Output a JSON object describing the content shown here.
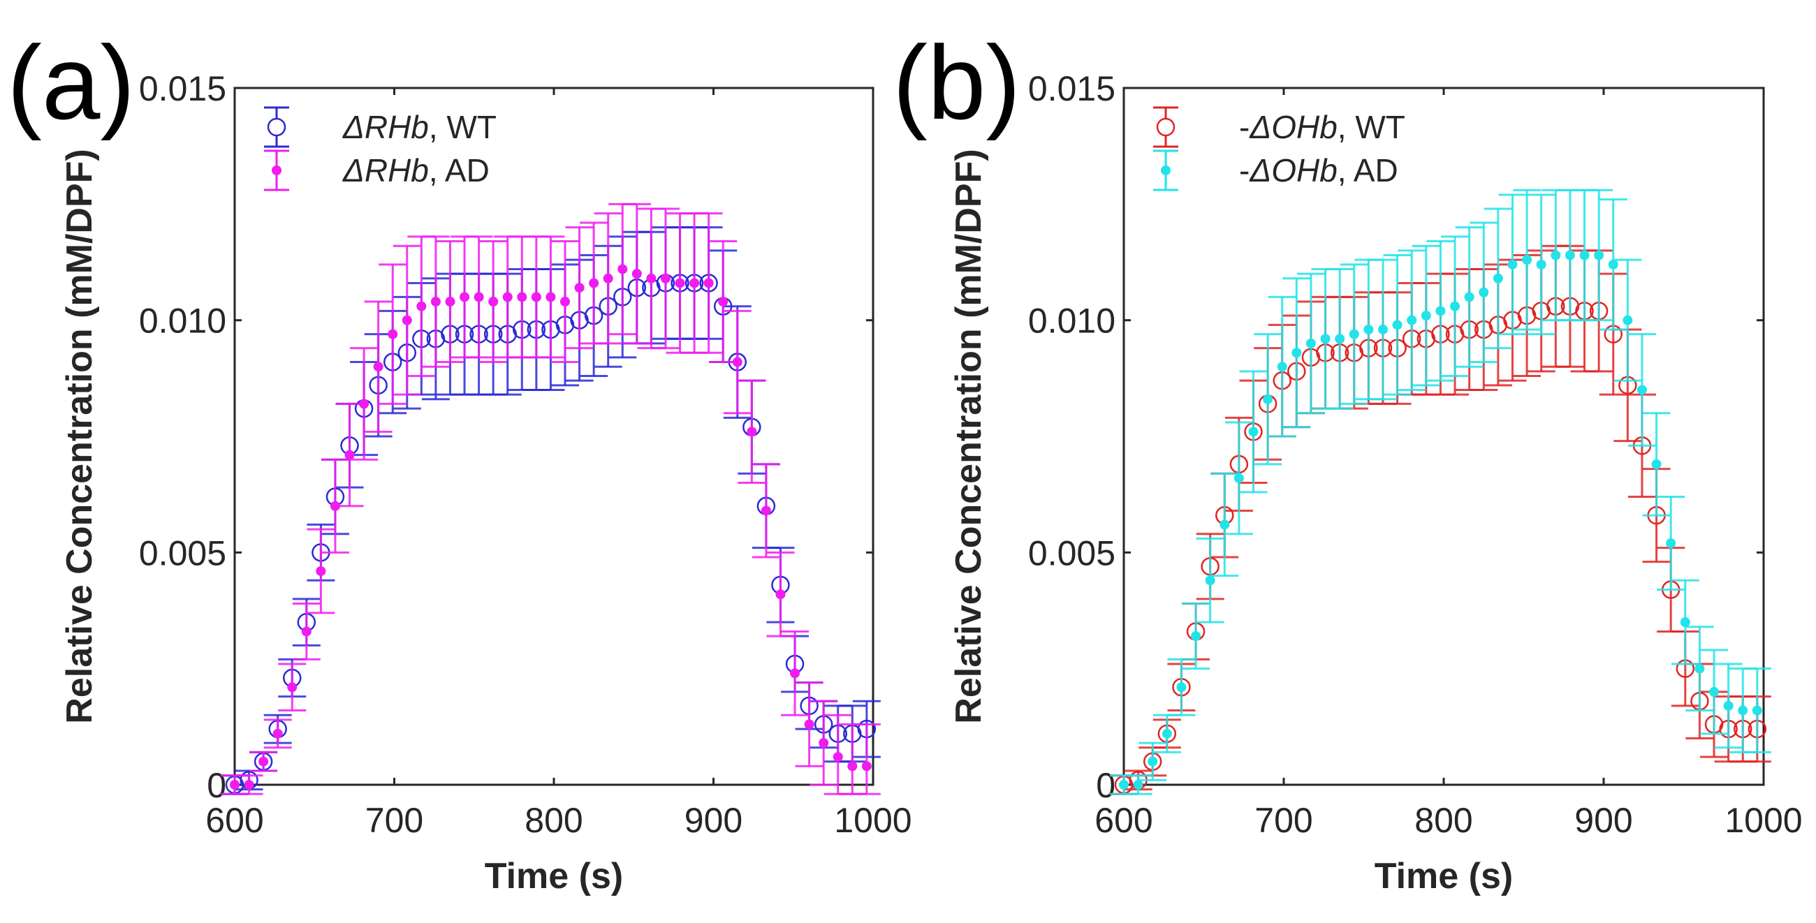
{
  "chart_data": [
    {
      "type": "scatter",
      "panel_label": "(a)",
      "xlabel": "Time (s)",
      "ylabel": "Relative Concentration (mM/DPF)",
      "xlim": [
        600,
        1000
      ],
      "ylim": [
        0,
        0.015
      ],
      "xticks": [
        "600",
        "700",
        "800",
        "900",
        "1000"
      ],
      "xtick_values": [
        600,
        700,
        800,
        900,
        1000
      ],
      "yticks": [
        "0",
        "0.005",
        "0.010",
        "0.015"
      ],
      "ytick_values": [
        0,
        0.005,
        0.01,
        0.015
      ],
      "legend_position": "top-left",
      "x_start": 600,
      "x_step": 9,
      "series": [
        {
          "name": "ΔRHb, WT",
          "prefix": "",
          "italic": "ΔRHb",
          "suffix": ", WT",
          "marker": "open-circle",
          "color": "#2a2ad6",
          "values": [
            0,
            0.0001,
            0.0005,
            0.0012,
            0.0023,
            0.0035,
            0.005,
            0.0062,
            0.0073,
            0.0081,
            0.0086,
            0.0091,
            0.0093,
            0.0096,
            0.0096,
            0.0097,
            0.0097,
            0.0097,
            0.0097,
            0.0097,
            0.0098,
            0.0098,
            0.0098,
            0.0099,
            0.01,
            0.0101,
            0.0103,
            0.0105,
            0.0107,
            0.0107,
            0.0108,
            0.0108,
            0.0108,
            0.0108,
            0.0103,
            0.0091,
            0.0077,
            0.006,
            0.0043,
            0.0026,
            0.0017,
            0.0013,
            0.0011,
            0.0011,
            0.0012
          ],
          "errors": [
            0.0002,
            0.0002,
            0.0002,
            0.0003,
            0.0004,
            0.0005,
            0.0006,
            0.0008,
            0.0009,
            0.001,
            0.0011,
            0.0011,
            0.0012,
            0.0012,
            0.0013,
            0.0013,
            0.0013,
            0.0013,
            0.0013,
            0.0013,
            0.0013,
            0.0013,
            0.0013,
            0.0013,
            0.0013,
            0.0013,
            0.0013,
            0.0013,
            0.0012,
            0.0012,
            0.0012,
            0.0012,
            0.0012,
            0.0012,
            0.0012,
            0.0012,
            0.001,
            0.0009,
            0.0008,
            0.0006,
            0.0005,
            0.0005,
            0.0006,
            0.0006,
            0.0006
          ]
        },
        {
          "name": "ΔRHb, AD",
          "prefix": "",
          "italic": "ΔRHb",
          "suffix": ", AD",
          "marker": "filled-dot",
          "color": "#f01cf0",
          "values": [
            0,
            0,
            0.0005,
            0.0011,
            0.0021,
            0.0033,
            0.0046,
            0.006,
            0.0071,
            0.0082,
            0.009,
            0.0097,
            0.01,
            0.0103,
            0.0104,
            0.0104,
            0.0105,
            0.0105,
            0.0104,
            0.0105,
            0.0105,
            0.0105,
            0.0105,
            0.0104,
            0.0107,
            0.0108,
            0.0109,
            0.0111,
            0.011,
            0.0109,
            0.0109,
            0.0108,
            0.0108,
            0.0108,
            0.0104,
            0.0091,
            0.0076,
            0.0059,
            0.0041,
            0.0024,
            0.0013,
            0.0009,
            0.0006,
            0.0004,
            0.0004
          ],
          "errors": [
            0.0002,
            0.0002,
            0.0002,
            0.0003,
            0.0005,
            0.0006,
            0.0009,
            0.001,
            0.0011,
            0.0012,
            0.0014,
            0.0015,
            0.0016,
            0.0015,
            0.0014,
            0.0013,
            0.0013,
            0.0013,
            0.0013,
            0.0013,
            0.0013,
            0.0013,
            0.0013,
            0.0013,
            0.0013,
            0.0013,
            0.0014,
            0.0014,
            0.0015,
            0.0015,
            0.0015,
            0.0015,
            0.0015,
            0.0015,
            0.0013,
            0.0011,
            0.0011,
            0.001,
            0.0009,
            0.0009,
            0.0009,
            0.0009,
            0.0009,
            0.0009,
            0.0009
          ]
        }
      ]
    },
    {
      "type": "scatter",
      "panel_label": "(b)",
      "xlabel": "Time (s)",
      "ylabel": "Relative Concentration (mM/DPF)",
      "xlim": [
        600,
        1000
      ],
      "ylim": [
        0,
        0.015
      ],
      "xticks": [
        "600",
        "700",
        "800",
        "900",
        "1000"
      ],
      "xtick_values": [
        600,
        700,
        800,
        900,
        1000
      ],
      "yticks": [
        "0",
        "0.005",
        "0.010",
        "0.015"
      ],
      "ytick_values": [
        0,
        0.005,
        0.01,
        0.015
      ],
      "legend_position": "top-left",
      "x_start": 600,
      "x_step": 9,
      "series": [
        {
          "name": "-ΔOHb, WT",
          "prefix": "-",
          "italic": "ΔOHb",
          "suffix": ", WT",
          "marker": "open-circle",
          "color": "#e02424",
          "values": [
            0,
            0.0001,
            0.0005,
            0.0011,
            0.0021,
            0.0033,
            0.0047,
            0.0058,
            0.0069,
            0.0076,
            0.0082,
            0.0087,
            0.0089,
            0.0092,
            0.0093,
            0.0093,
            0.0093,
            0.0094,
            0.0094,
            0.0094,
            0.0096,
            0.0096,
            0.0097,
            0.0097,
            0.0098,
            0.0098,
            0.0099,
            0.01,
            0.0101,
            0.0102,
            0.0103,
            0.0103,
            0.0102,
            0.0102,
            0.0097,
            0.0086,
            0.0073,
            0.0058,
            0.0042,
            0.0025,
            0.0018,
            0.0013,
            0.0012,
            0.0012,
            0.0012
          ],
          "errors": [
            0.0002,
            0.0002,
            0.0003,
            0.0003,
            0.0005,
            0.0006,
            0.0007,
            0.0009,
            0.001,
            0.0011,
            0.0012,
            0.0012,
            0.0012,
            0.0012,
            0.0012,
            0.0012,
            0.0012,
            0.0012,
            0.0012,
            0.0012,
            0.0012,
            0.0012,
            0.0013,
            0.0013,
            0.0013,
            0.0013,
            0.0013,
            0.0013,
            0.0013,
            0.0013,
            0.0013,
            0.0013,
            0.0013,
            0.0013,
            0.0013,
            0.0012,
            0.0011,
            0.001,
            0.0009,
            0.0008,
            0.0008,
            0.0007,
            0.0007,
            0.0007,
            0.0007
          ]
        },
        {
          "name": "-ΔOHb, AD",
          "prefix": "-",
          "italic": "ΔOHb",
          "suffix": ", AD",
          "marker": "filled-dot",
          "color": "#22e3e8",
          "values": [
            0,
            0,
            0.0005,
            0.0011,
            0.0021,
            0.0032,
            0.0044,
            0.0056,
            0.0066,
            0.0076,
            0.0083,
            0.009,
            0.0093,
            0.0095,
            0.0096,
            0.0096,
            0.0097,
            0.0098,
            0.0098,
            0.0099,
            0.01,
            0.0101,
            0.0102,
            0.0103,
            0.0105,
            0.0106,
            0.0109,
            0.0112,
            0.0113,
            0.0112,
            0.0114,
            0.0114,
            0.0114,
            0.0114,
            0.0112,
            0.01,
            0.0085,
            0.0069,
            0.0052,
            0.0035,
            0.0025,
            0.002,
            0.0017,
            0.0016,
            0.0016
          ],
          "errors": [
            0.0002,
            0.0002,
            0.0004,
            0.0004,
            0.0006,
            0.0007,
            0.0009,
            0.0011,
            0.0012,
            0.0013,
            0.0014,
            0.0015,
            0.0016,
            0.0015,
            0.0015,
            0.0015,
            0.0015,
            0.0015,
            0.0015,
            0.0015,
            0.0015,
            0.0015,
            0.0015,
            0.0015,
            0.0015,
            0.0015,
            0.0015,
            0.0015,
            0.0015,
            0.0015,
            0.0014,
            0.0014,
            0.0014,
            0.0014,
            0.0014,
            0.0013,
            0.0012,
            0.0011,
            0.001,
            0.0009,
            0.0009,
            0.0009,
            0.0009,
            0.0009,
            0.0009
          ]
        }
      ]
    }
  ]
}
